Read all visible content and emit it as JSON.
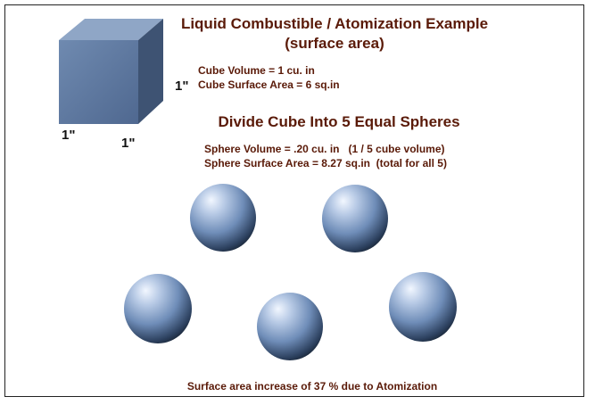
{
  "title": "Liquid Combustible / Atomization Example",
  "subtitle": "(surface area)",
  "cube": {
    "volume_text": "Cube Volume = 1 cu. in",
    "surface_text": "Cube Surface Area = 6 sq.in",
    "dim_height": "1\"",
    "dim_depth": "1\"",
    "dim_width": "1\""
  },
  "divide_title": "Divide Cube Into 5 Equal Spheres",
  "spheres": {
    "count": 5,
    "volume_text": "Sphere Volume = .20 cu. in   (1 / 5 cube volume)",
    "surface_text": "Sphere Surface Area = 8.27 sq.in  (total for all 5)"
  },
  "footer": "Surface area increase of 37 % due to Atomization",
  "colors": {
    "text": "#5a1a08",
    "cube_front": "#5f7a9f",
    "cube_top": "#8fa7c7",
    "cube_side": "#3e5575",
    "sphere_highlight": "#eef4ff",
    "sphere_mid": "#8aa6cf",
    "sphere_shadow": "#1c2c44"
  }
}
